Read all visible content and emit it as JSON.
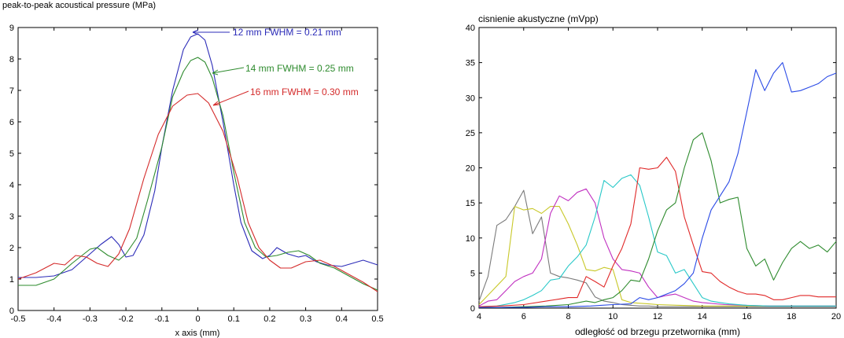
{
  "chart_data": [
    {
      "type": "line",
      "title": "peak-to-peak acoustical pressure (MPa)",
      "xlabel": "x axis (mm)",
      "ylabel": "",
      "xlim": [
        -0.5,
        0.5
      ],
      "ylim": [
        0,
        9
      ],
      "xticks": [
        "-0.5",
        "-0.4",
        "-0.3",
        "-0.2",
        "-0.1",
        "0",
        "0.1",
        "0.2",
        "0.3",
        "0.4",
        "0.5"
      ],
      "yticks": [
        "0",
        "1",
        "2",
        "3",
        "4",
        "5",
        "6",
        "7",
        "8",
        "9"
      ],
      "grid": false,
      "series": [
        {
          "name": "12 mm  FWHM = 0.21 mm",
          "color": "#2b2bb8",
          "x": [
            -0.5,
            -0.45,
            -0.4,
            -0.35,
            -0.3,
            -0.27,
            -0.24,
            -0.22,
            -0.2,
            -0.18,
            -0.15,
            -0.12,
            -0.1,
            -0.07,
            -0.04,
            -0.02,
            0,
            0.02,
            0.04,
            0.07,
            0.1,
            0.12,
            0.15,
            0.18,
            0.2,
            0.22,
            0.25,
            0.28,
            0.3,
            0.33,
            0.36,
            0.4,
            0.43,
            0.46,
            0.5
          ],
          "y": [
            1.05,
            1.05,
            1.1,
            1.3,
            1.8,
            2.1,
            2.35,
            2.1,
            1.7,
            1.75,
            2.4,
            3.8,
            5.2,
            7.0,
            8.3,
            8.7,
            8.8,
            8.6,
            7.8,
            6.0,
            4.0,
            2.8,
            1.9,
            1.65,
            1.75,
            2.0,
            1.8,
            1.7,
            1.75,
            1.55,
            1.45,
            1.4,
            1.5,
            1.6,
            1.45
          ]
        },
        {
          "name": "14 mm  FWHM = 0.25 mm",
          "color": "#2e8b2e",
          "x": [
            -0.5,
            -0.45,
            -0.4,
            -0.35,
            -0.3,
            -0.28,
            -0.25,
            -0.22,
            -0.2,
            -0.17,
            -0.14,
            -0.1,
            -0.07,
            -0.04,
            -0.02,
            0,
            0.02,
            0.04,
            0.07,
            0.1,
            0.13,
            0.16,
            0.19,
            0.22,
            0.25,
            0.28,
            0.31,
            0.34,
            0.38,
            0.42,
            0.46,
            0.5
          ],
          "y": [
            0.8,
            0.8,
            1.0,
            1.5,
            1.95,
            2.0,
            1.75,
            1.6,
            1.8,
            2.3,
            3.5,
            5.2,
            6.8,
            7.6,
            7.95,
            8.05,
            7.9,
            7.4,
            6.2,
            4.4,
            2.8,
            2.0,
            1.7,
            1.75,
            1.85,
            1.9,
            1.75,
            1.5,
            1.35,
            1.1,
            0.85,
            0.65
          ]
        },
        {
          "name": "16 mm  FWHM = 0.30 mm",
          "color": "#d42a2a",
          "x": [
            -0.5,
            -0.45,
            -0.4,
            -0.37,
            -0.34,
            -0.31,
            -0.28,
            -0.25,
            -0.22,
            -0.19,
            -0.15,
            -0.11,
            -0.07,
            -0.03,
            0,
            0.03,
            0.07,
            0.11,
            0.14,
            0.17,
            0.2,
            0.23,
            0.26,
            0.3,
            0.34,
            0.38,
            0.42,
            0.46,
            0.5
          ],
          "y": [
            1.0,
            1.2,
            1.5,
            1.45,
            1.75,
            1.7,
            1.5,
            1.4,
            1.8,
            2.6,
            4.2,
            5.6,
            6.5,
            6.85,
            6.9,
            6.6,
            5.7,
            4.2,
            2.8,
            2.0,
            1.6,
            1.35,
            1.35,
            1.55,
            1.6,
            1.4,
            1.15,
            0.9,
            0.6
          ]
        }
      ]
    },
    {
      "type": "line",
      "title": "cisnienie akustyczne (mVpp)",
      "xlabel": "odległość od brzegu przetwornika (mm)",
      "ylabel": "",
      "xlim": [
        4,
        20
      ],
      "ylim": [
        0,
        40
      ],
      "xticks": [
        "4",
        "6",
        "8",
        "10",
        "12",
        "14",
        "16",
        "18",
        "20"
      ],
      "yticks": [
        "0",
        "5",
        "10",
        "15",
        "20",
        "25",
        "30",
        "35",
        "40"
      ],
      "grid": false,
      "series": [
        {
          "color": "#7a7a7a",
          "x": [
            4,
            4.4,
            4.8,
            5.2,
            5.6,
            6.0,
            6.4,
            6.8,
            7.2,
            7.6,
            8.0,
            8.4,
            8.8,
            9.2,
            9.6,
            10.0,
            10.4,
            10.8,
            11.2,
            11.6,
            12,
            13,
            14,
            15,
            16,
            17,
            18,
            19,
            20
          ],
          "y": [
            1,
            4.5,
            11.8,
            12.6,
            14.5,
            16.8,
            10.6,
            13.0,
            5.0,
            4.5,
            4.3,
            4.0,
            3.6,
            1.6,
            1.0,
            0.8,
            0.5,
            0.4,
            0.3,
            0.3,
            0.2,
            0.2,
            0.2,
            0.2,
            0.2,
            0.2,
            0.2,
            0.2,
            0.2
          ]
        },
        {
          "color": "#c8c828",
          "x": [
            4,
            4.6,
            5.2,
            5.6,
            6.0,
            6.4,
            6.8,
            7.2,
            7.6,
            8.0,
            8.4,
            8.8,
            9.2,
            9.6,
            10.0,
            10.4,
            10.8,
            11.2,
            11.6,
            12,
            13,
            14,
            15,
            16,
            17,
            18,
            19,
            20
          ],
          "y": [
            0.5,
            2.5,
            4.5,
            14.5,
            14.0,
            14.2,
            13.5,
            14.5,
            14.5,
            12.0,
            9.0,
            5.5,
            5.3,
            5.8,
            5.5,
            1.2,
            0.8,
            0.7,
            0.6,
            0.5,
            0.4,
            0.3,
            0.3,
            0.3,
            0.3,
            0.3,
            0.3,
            0.3
          ]
        },
        {
          "color": "#c030c0",
          "x": [
            4,
            4.4,
            4.8,
            5.2,
            5.6,
            6.0,
            6.4,
            6.8,
            7.2,
            7.6,
            8.0,
            8.4,
            8.8,
            9.2,
            9.6,
            10.0,
            10.4,
            10.8,
            11.2,
            11.6,
            12.0,
            12.4,
            12.8,
            13.2,
            13.6,
            14,
            15,
            16,
            17,
            18,
            19,
            20
          ],
          "y": [
            0.3,
            1.0,
            1.2,
            2.5,
            3.8,
            4.5,
            5.0,
            7.0,
            13.5,
            16.0,
            15.3,
            16.5,
            17.0,
            15.0,
            10.0,
            7.0,
            5.5,
            5.3,
            5.0,
            3.0,
            1.5,
            1.8,
            2.0,
            1.5,
            1.0,
            0.8,
            0.5,
            0.4,
            0.3,
            0.3,
            0.3,
            0.3
          ]
        },
        {
          "color": "#28c8c8",
          "x": [
            4,
            4.8,
            5.6,
            6.0,
            6.4,
            6.8,
            7.2,
            7.6,
            8.0,
            8.4,
            8.8,
            9.2,
            9.6,
            10.0,
            10.4,
            10.8,
            11.2,
            11.6,
            12.0,
            12.4,
            12.8,
            13.2,
            13.6,
            14.0,
            14.4,
            14.8,
            15.2,
            16,
            17,
            18,
            19,
            20
          ],
          "y": [
            0.2,
            0.3,
            0.8,
            1.2,
            1.8,
            2.5,
            4.0,
            4.2,
            6.0,
            7.3,
            9.0,
            13.0,
            18.2,
            17.2,
            18.5,
            19.0,
            17.5,
            13.0,
            8.0,
            7.5,
            5.0,
            5.5,
            3.5,
            1.5,
            1.0,
            0.8,
            0.6,
            0.4,
            0.3,
            0.3,
            0.3,
            0.3
          ]
        },
        {
          "color": "#e02828",
          "x": [
            4,
            5,
            6,
            7,
            7.6,
            8.0,
            8.4,
            8.8,
            9.2,
            9.6,
            10.0,
            10.4,
            10.8,
            11.2,
            11.6,
            12.0,
            12.4,
            12.8,
            13.2,
            13.6,
            14.0,
            14.4,
            14.8,
            15.2,
            15.6,
            16.0,
            16.4,
            16.8,
            17.2,
            17.6,
            18.0,
            18.4,
            18.8,
            19.2,
            19.6,
            20.0
          ],
          "y": [
            0.2,
            0.3,
            0.5,
            1.0,
            1.3,
            1.5,
            1.5,
            4.5,
            3.8,
            3.0,
            6.0,
            8.5,
            12.0,
            20.0,
            19.8,
            20.0,
            21.5,
            19.5,
            13.0,
            9.0,
            5.2,
            5.0,
            3.8,
            3.0,
            2.4,
            2.0,
            2.0,
            1.8,
            1.2,
            1.2,
            1.5,
            1.8,
            1.8,
            1.6,
            1.6,
            1.6
          ]
        },
        {
          "color": "#2e8b2e",
          "x": [
            4,
            5,
            6,
            7,
            8,
            8.8,
            9.2,
            9.6,
            10.0,
            10.4,
            10.8,
            11.2,
            11.6,
            12.0,
            12.4,
            12.8,
            13.2,
            13.6,
            14.0,
            14.4,
            14.8,
            15.2,
            15.6,
            16.0,
            16.4,
            16.8,
            17.2,
            17.6,
            18.0,
            18.4,
            18.8,
            19.2,
            19.6,
            20.0
          ],
          "y": [
            0.1,
            0.1,
            0.2,
            0.3,
            0.5,
            1.0,
            0.8,
            1.2,
            1.5,
            2.5,
            4.0,
            3.8,
            7.0,
            11.0,
            14.0,
            15.0,
            20.0,
            24.0,
            25.0,
            21.0,
            15.0,
            15.5,
            15.8,
            8.5,
            6.0,
            7.0,
            4.0,
            6.5,
            8.5,
            9.5,
            8.5,
            9.0,
            8.0,
            9.5
          ]
        },
        {
          "color": "#2a4ae6",
          "x": [
            4,
            5,
            6,
            7,
            8,
            9,
            10,
            10.8,
            11.2,
            11.6,
            12.0,
            12.4,
            12.8,
            13.2,
            13.6,
            14.0,
            14.4,
            14.8,
            15.2,
            15.6,
            16.0,
            16.4,
            16.8,
            17.2,
            17.6,
            18.0,
            18.4,
            18.8,
            19.2,
            19.6,
            20.0
          ],
          "y": [
            0.1,
            0.1,
            0.1,
            0.2,
            0.2,
            0.3,
            0.5,
            0.6,
            1.5,
            1.2,
            1.5,
            2.0,
            2.5,
            3.5,
            5.0,
            10.0,
            14.0,
            16.0,
            18.0,
            22.0,
            28.0,
            34.0,
            31.0,
            33.5,
            35.0,
            30.8,
            31.0,
            31.5,
            32.0,
            33.0,
            33.5
          ]
        }
      ]
    }
  ]
}
